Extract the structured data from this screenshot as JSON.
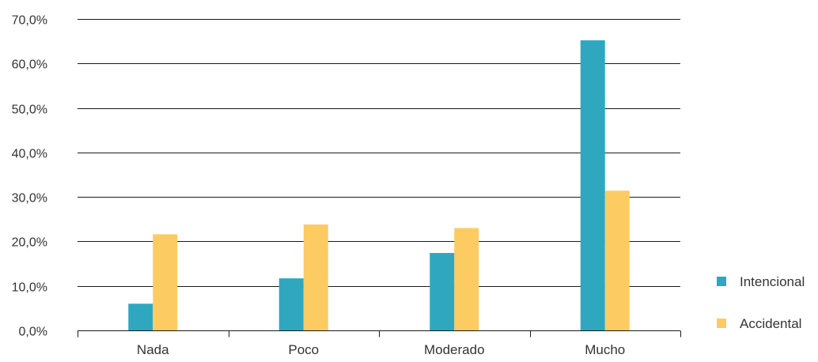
{
  "chart_data": {
    "type": "bar",
    "title": "",
    "xlabel": "",
    "ylabel": "",
    "categories": [
      "Nada",
      "Poco",
      "Moderado",
      "Mucho"
    ],
    "series": [
      {
        "name": "Intencional",
        "color": "#2fa8bf",
        "values": [
          6.0,
          11.7,
          17.4,
          65.2
        ]
      },
      {
        "name": "Accidental",
        "color": "#fccb62",
        "values": [
          21.6,
          23.8,
          23.0,
          31.4
        ]
      }
    ],
    "ylim": [
      0,
      70
    ],
    "yticks": [
      0,
      10,
      20,
      30,
      40,
      50,
      60,
      70
    ],
    "ytick_labels": [
      "0,0%",
      "10,0%",
      "20,0%",
      "30,0%",
      "40,0%",
      "50,0%",
      "60,0%",
      "70,0%"
    ],
    "grid": true,
    "legend_position": "right"
  }
}
